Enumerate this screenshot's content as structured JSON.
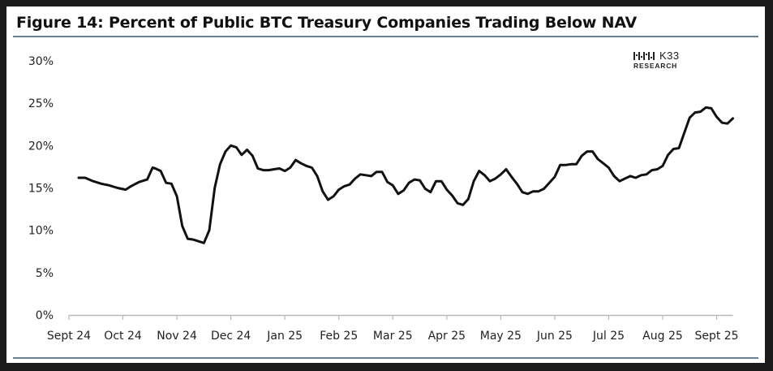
{
  "title": "Figure 14: Percent of Public BTC Treasury Companies Trading Below NAV",
  "logo": {
    "name": "K33",
    "sub": "RESEARCH",
    "icon": "k33-logo-mark-icon"
  },
  "colors": {
    "line": "#111111",
    "rule": "#6a8090",
    "frame_bg": "#1b1b1b",
    "panel_bg": "#ffffff"
  },
  "chart_data": {
    "type": "line",
    "title": "Figure 14: Percent of Public BTC Treasury Companies Trading Below NAV",
    "xlabel": "",
    "ylabel": "",
    "ylim": [
      0,
      30
    ],
    "yticks": [
      0,
      5,
      10,
      15,
      20,
      25,
      30
    ],
    "ytick_labels": [
      "0%",
      "5%",
      "10%",
      "15%",
      "20%",
      "25%",
      "30%"
    ],
    "xlim": [
      0,
      12.3
    ],
    "xticks": [
      0,
      1,
      2,
      3,
      4,
      5,
      6,
      7,
      8,
      9,
      10,
      11,
      12
    ],
    "xtick_labels": [
      "Sept 24",
      "Oct 24",
      "Nov 24",
      "Dec 24",
      "Jan 25",
      "Feb 25",
      "Mar 25",
      "Apr 25",
      "May 25",
      "Jun 25",
      "Jul 25",
      "Aug 25",
      "Sept 25"
    ],
    "grid": false,
    "legend": "none",
    "series": [
      {
        "x": [
          0.18,
          0.3,
          0.45,
          0.6,
          0.75,
          0.9,
          1.05,
          1.15,
          1.3,
          1.45,
          1.55,
          1.6,
          1.7,
          1.8,
          1.9,
          2.0,
          2.1,
          2.2,
          2.3,
          2.4,
          2.5,
          2.6,
          2.7,
          2.8,
          2.9,
          3.0,
          3.1,
          3.2,
          3.3,
          3.4,
          3.5,
          3.6,
          3.7,
          3.8,
          3.9,
          4.0,
          4.1,
          4.2,
          4.3,
          4.4,
          4.5,
          4.6,
          4.7,
          4.8,
          4.9,
          5.0,
          5.1,
          5.2,
          5.3,
          5.4,
          5.5,
          5.6,
          5.7,
          5.8,
          5.9,
          6.0,
          6.1,
          6.2,
          6.3,
          6.4,
          6.5,
          6.6,
          6.7,
          6.8,
          6.9,
          7.0,
          7.1,
          7.2,
          7.3,
          7.4,
          7.5,
          7.6,
          7.7,
          7.8,
          7.9,
          8.0,
          8.1,
          8.2,
          8.3,
          8.4,
          8.5,
          8.6,
          8.7,
          8.8,
          8.9,
          9.0,
          9.1,
          9.2,
          9.3,
          9.4,
          9.5,
          9.6,
          9.7,
          9.8,
          9.9,
          10.0,
          10.1,
          10.2,
          10.3,
          10.4,
          10.5,
          10.6,
          10.7,
          10.8,
          10.9,
          11.0,
          11.1,
          11.2,
          11.3,
          11.4,
          11.5,
          11.6,
          11.7,
          11.8,
          11.9,
          12.0,
          12.1,
          12.2,
          12.3
        ],
        "y": [
          16.2,
          16.2,
          15.8,
          15.5,
          15.3,
          15.0,
          14.8,
          15.2,
          15.7,
          16.0,
          17.4,
          17.3,
          17.0,
          15.6,
          15.5,
          14.0,
          10.5,
          9.0,
          8.9,
          8.7,
          8.5,
          10.0,
          15.0,
          17.8,
          19.3,
          20.0,
          19.8,
          18.9,
          19.5,
          18.8,
          17.3,
          17.1,
          17.1,
          17.2,
          17.3,
          17.0,
          17.4,
          18.3,
          17.9,
          17.6,
          17.4,
          16.4,
          14.6,
          13.6,
          14.0,
          14.8,
          15.2,
          15.4,
          16.1,
          16.6,
          16.5,
          16.4,
          16.9,
          16.9,
          15.7,
          15.3,
          14.3,
          14.7,
          15.6,
          16.0,
          15.9,
          14.9,
          14.5,
          15.8,
          15.8,
          14.8,
          14.1,
          13.2,
          13.0,
          13.7,
          15.8,
          17.0,
          16.5,
          15.8,
          16.1,
          16.6,
          17.2,
          16.3,
          15.5,
          14.5,
          14.3,
          14.6,
          14.6,
          14.9,
          15.6,
          16.3,
          17.7,
          17.7,
          17.8,
          17.8,
          18.8,
          19.3,
          19.3,
          18.4,
          17.9,
          17.4,
          16.4,
          15.8,
          16.1,
          16.4,
          16.2,
          16.5,
          16.6,
          17.1,
          17.2,
          17.6,
          18.9,
          19.6,
          19.7,
          21.5,
          23.3,
          23.9,
          24.0,
          24.5,
          24.4,
          23.4,
          22.7,
          22.6,
          23.2
        ]
      }
    ]
  }
}
